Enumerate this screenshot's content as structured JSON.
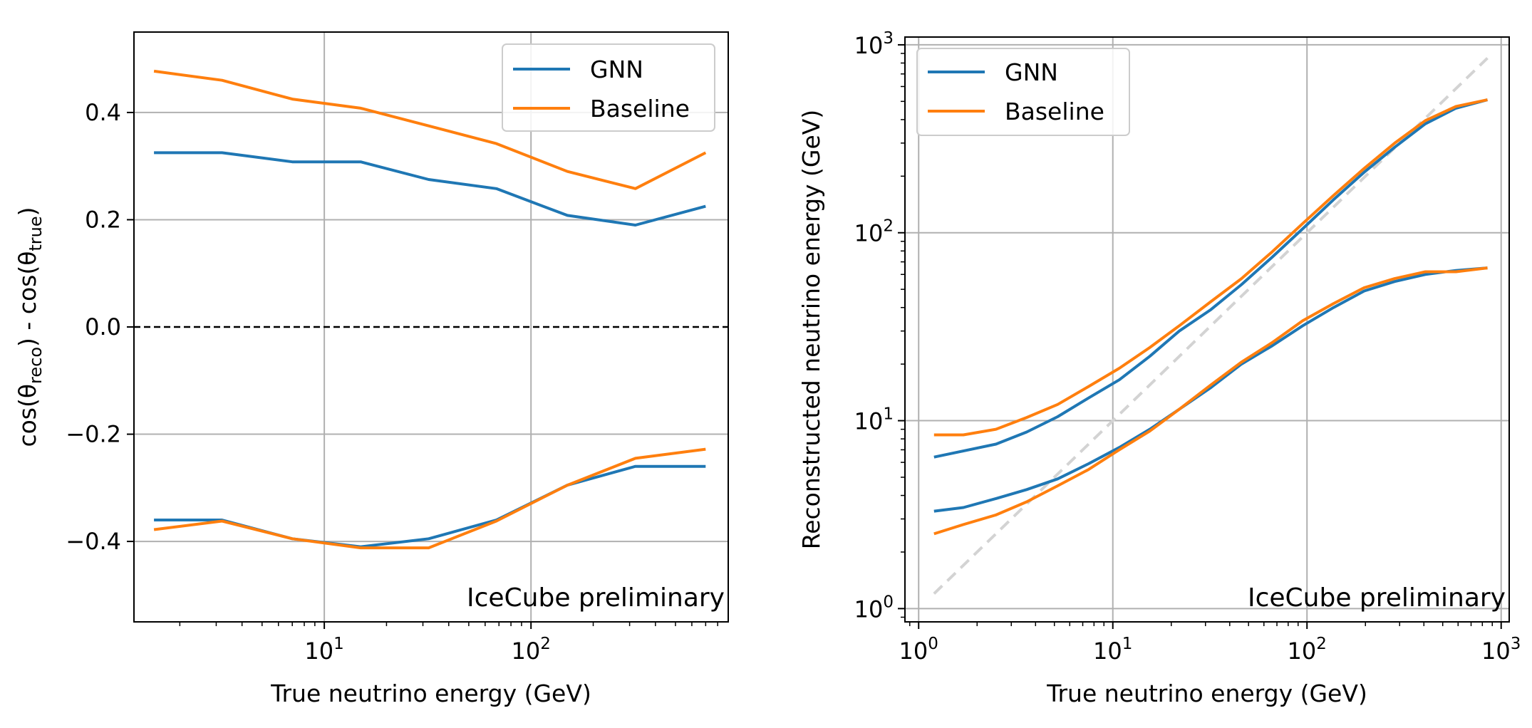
{
  "colors": {
    "gnn": "#1f77b4",
    "baseline": "#ff7f0e",
    "grid": "#b0b0b0",
    "watermark": "#ff0000",
    "diagonal": "#d3d3d3"
  },
  "chart_data": [
    {
      "type": "line",
      "xscale": "log",
      "xlim": [
        1.2,
        900
      ],
      "ylim": [
        -0.55,
        0.55
      ],
      "xlabel": "True neutrino energy (GeV)",
      "ylabel_parts": [
        "cos(θ",
        "reco",
        ") - cos(θ",
        "true",
        ")"
      ],
      "xticks": [
        {
          "base": "10",
          "exp": "1",
          "value": 10
        },
        {
          "base": "10",
          "exp": "2",
          "value": 100
        }
      ],
      "yticks": [
        {
          "label": "−0.4",
          "value": -0.4
        },
        {
          "label": "−0.2",
          "value": -0.2
        },
        {
          "label": "0.0",
          "value": 0.0
        },
        {
          "label": "0.2",
          "value": 0.2
        },
        {
          "label": "0.4",
          "value": 0.4
        }
      ],
      "hline": 0.0,
      "legend": {
        "location": "top-right",
        "entries": [
          "GNN",
          "Baseline"
        ]
      },
      "annotation": "IceCube preliminary",
      "x": [
        1.5,
        3.2,
        7,
        15,
        32,
        68,
        150,
        320,
        700
      ],
      "series": [
        {
          "name": "GNN",
          "color_key": "gnn",
          "band": "upper",
          "values": [
            0.325,
            0.325,
            0.308,
            0.308,
            0.275,
            0.258,
            0.208,
            0.19,
            0.225
          ]
        },
        {
          "name": "GNN",
          "color_key": "gnn",
          "band": "lower",
          "values": [
            -0.36,
            -0.36,
            -0.395,
            -0.41,
            -0.395,
            -0.36,
            -0.295,
            -0.26,
            -0.26
          ]
        },
        {
          "name": "Baseline",
          "color_key": "baseline",
          "band": "upper",
          "values": [
            0.477,
            0.46,
            0.425,
            0.408,
            0.375,
            0.342,
            0.29,
            0.258,
            0.325
          ]
        },
        {
          "name": "Baseline",
          "color_key": "baseline",
          "band": "lower",
          "values": [
            -0.378,
            -0.362,
            -0.395,
            -0.412,
            -0.412,
            -0.362,
            -0.295,
            -0.245,
            -0.228
          ]
        }
      ]
    },
    {
      "type": "line",
      "xscale": "log",
      "yscale": "log",
      "xlim": [
        0.85,
        1100
      ],
      "ylim": [
        0.85,
        1100
      ],
      "xlabel": "True neutrino energy (GeV)",
      "ylabel": "Reconstructed neutrino energy (GeV)",
      "xticks": [
        {
          "base": "10",
          "exp": "0",
          "value": 1
        },
        {
          "base": "10",
          "exp": "1",
          "value": 10
        },
        {
          "base": "10",
          "exp": "2",
          "value": 100
        },
        {
          "base": "10",
          "exp": "3",
          "value": 1000
        }
      ],
      "yticks": [
        {
          "base": "10",
          "exp": "0",
          "value": 1
        },
        {
          "base": "10",
          "exp": "1",
          "value": 10
        },
        {
          "base": "10",
          "exp": "2",
          "value": 100
        },
        {
          "base": "10",
          "exp": "3",
          "value": 1000
        }
      ],
      "diagonal": [
        1.2,
        850
      ],
      "legend": {
        "location": "top-left",
        "entries": [
          "GNN",
          "Baseline"
        ]
      },
      "annotation": "IceCube preliminary",
      "series": [
        {
          "name": "GNN",
          "color_key": "gnn",
          "band": "upper",
          "x": [
            1.2,
            1.7,
            2.5,
            3.6,
            5.2,
            7.5,
            10.8,
            15.5,
            22,
            32,
            46,
            66,
            95,
            137,
            197,
            283,
            407,
            585,
            850
          ],
          "values": [
            6.4,
            6.9,
            7.5,
            8.7,
            10.5,
            13.2,
            16.5,
            22,
            30,
            39,
            53,
            74,
            105,
            150,
            210,
            285,
            380,
            460,
            510
          ]
        },
        {
          "name": "GNN",
          "color_key": "gnn",
          "band": "lower",
          "x": [
            1.2,
            1.7,
            2.5,
            3.6,
            5.2,
            7.5,
            10.8,
            15.5,
            22,
            32,
            46,
            66,
            95,
            137,
            197,
            283,
            407,
            585,
            850
          ],
          "values": [
            3.3,
            3.45,
            3.85,
            4.3,
            4.9,
            5.9,
            7.2,
            9,
            11.5,
            15,
            20,
            25,
            32,
            40,
            49,
            55,
            60,
            63,
            65
          ]
        },
        {
          "name": "Baseline",
          "color_key": "baseline",
          "band": "upper",
          "x": [
            1.2,
            1.7,
            2.5,
            3.6,
            5.2,
            7.5,
            10.8,
            15.5,
            22,
            32,
            46,
            66,
            95,
            137,
            197,
            283,
            407,
            585,
            850
          ],
          "values": [
            8.4,
            8.4,
            9,
            10.4,
            12.2,
            15.2,
            19,
            24.5,
            32,
            43,
            57,
            79,
            112,
            158,
            220,
            300,
            395,
            470,
            510
          ]
        },
        {
          "name": "Baseline",
          "color_key": "baseline",
          "band": "lower",
          "x": [
            1.2,
            1.7,
            2.5,
            3.6,
            5.2,
            7.5,
            10.8,
            15.5,
            22,
            32,
            46,
            66,
            95,
            137,
            197,
            283,
            407,
            585,
            850
          ],
          "values": [
            2.5,
            2.8,
            3.15,
            3.7,
            4.5,
            5.5,
            7,
            8.8,
            11.5,
            15.5,
            20.5,
            26,
            34,
            42,
            51,
            57,
            62,
            62,
            65
          ]
        }
      ]
    }
  ]
}
